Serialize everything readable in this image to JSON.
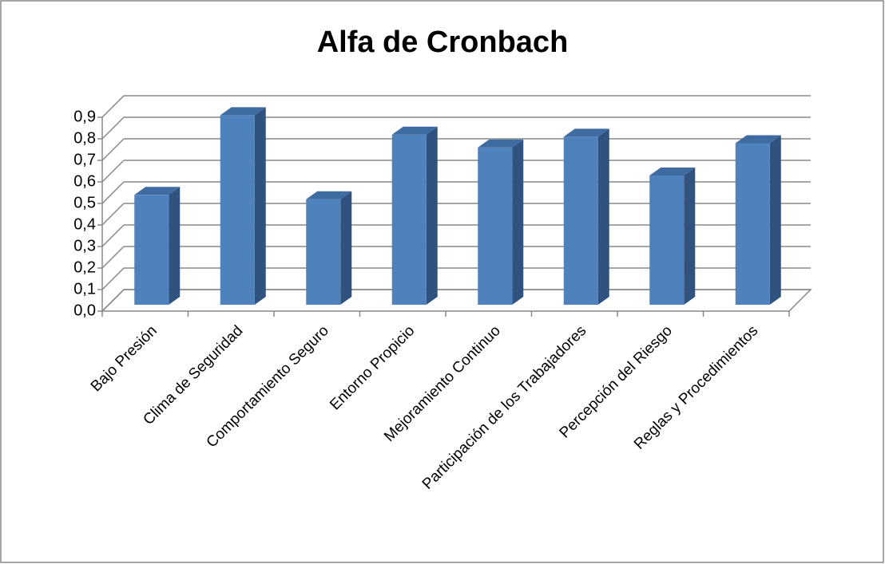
{
  "chart_data": {
    "type": "bar",
    "title": "Alfa de Cronbach",
    "categories": [
      "Bajo Presión",
      "Clima de Seguridad",
      "Comportamiento Seguro",
      "Entorno Propicio",
      "Mejoramiento Continuo",
      "Participación de los Trabajadores",
      "Percepción del Riesgo",
      "Reglas y Procedimientos"
    ],
    "values": [
      0.51,
      0.88,
      0.49,
      0.79,
      0.73,
      0.78,
      0.6,
      0.75
    ],
    "color": "#4f81bd",
    "ylim": [
      0,
      0.9
    ],
    "yticks": [
      {
        "value": 0,
        "label": "0,0"
      },
      {
        "value": 0.1,
        "label": "0,1"
      },
      {
        "value": 0.2,
        "label": "0,2"
      },
      {
        "value": 0.3,
        "label": "0,3"
      },
      {
        "value": 0.4,
        "label": "0,4"
      },
      {
        "value": 0.5,
        "label": "0,5"
      },
      {
        "value": 0.6,
        "label": "0,6"
      },
      {
        "value": 0.7,
        "label": "0,7"
      },
      {
        "value": 0.8,
        "label": "0,8"
      },
      {
        "value": 0.9,
        "label": "0,9"
      }
    ],
    "grid": true
  }
}
